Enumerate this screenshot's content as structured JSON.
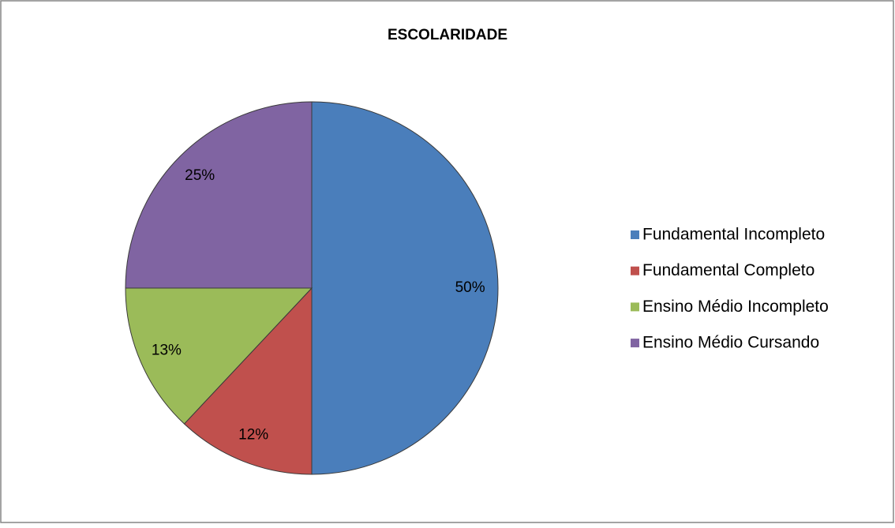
{
  "chart_data": {
    "type": "pie",
    "title": "ESCOLARIDADE",
    "categories": [
      "Fundamental Incompleto",
      "Fundamental Completo",
      "Ensino Médio Incompleto",
      "Ensino Médio Cursando"
    ],
    "values": [
      50,
      12,
      13,
      25
    ],
    "value_labels": [
      "50%",
      "12%",
      "13%",
      "25%"
    ],
    "colors": [
      "#4a7ebb",
      "#c0504d",
      "#9bbb59",
      "#8064a2"
    ],
    "legend": "right"
  }
}
